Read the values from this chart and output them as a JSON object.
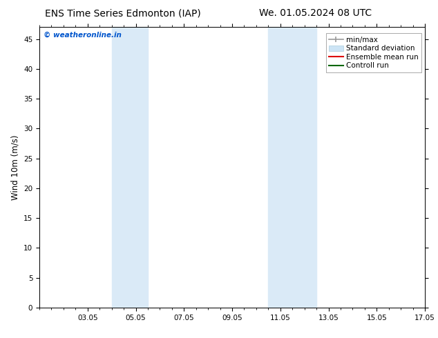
{
  "title_left": "ENS Time Series Edmonton (IAP)",
  "title_right": "We. 01.05.2024 08 UTC",
  "ylabel": "Wind 10m (m/s)",
  "xlim": [
    1,
    17
  ],
  "ylim": [
    0,
    47
  ],
  "yticks": [
    0,
    5,
    10,
    15,
    20,
    25,
    30,
    35,
    40,
    45
  ],
  "xtick_labels": [
    "03.05",
    "05.05",
    "07.05",
    "09.05",
    "11.05",
    "13.05",
    "15.05",
    "17.05"
  ],
  "xtick_positions": [
    3,
    5,
    7,
    9,
    11,
    13,
    15,
    17
  ],
  "background_color": "#ffffff",
  "plot_bg_color": "#ffffff",
  "shaded_bands": [
    {
      "x_start": 4.0,
      "x_end": 5.5,
      "color": "#daeaf7"
    },
    {
      "x_start": 10.5,
      "x_end": 12.5,
      "color": "#daeaf7"
    }
  ],
  "watermark_text": "© weatheronline.in",
  "watermark_color": "#0055cc",
  "title_fontsize": 10,
  "tick_fontsize": 7.5,
  "ylabel_fontsize": 8.5,
  "legend_fontsize": 7.5
}
